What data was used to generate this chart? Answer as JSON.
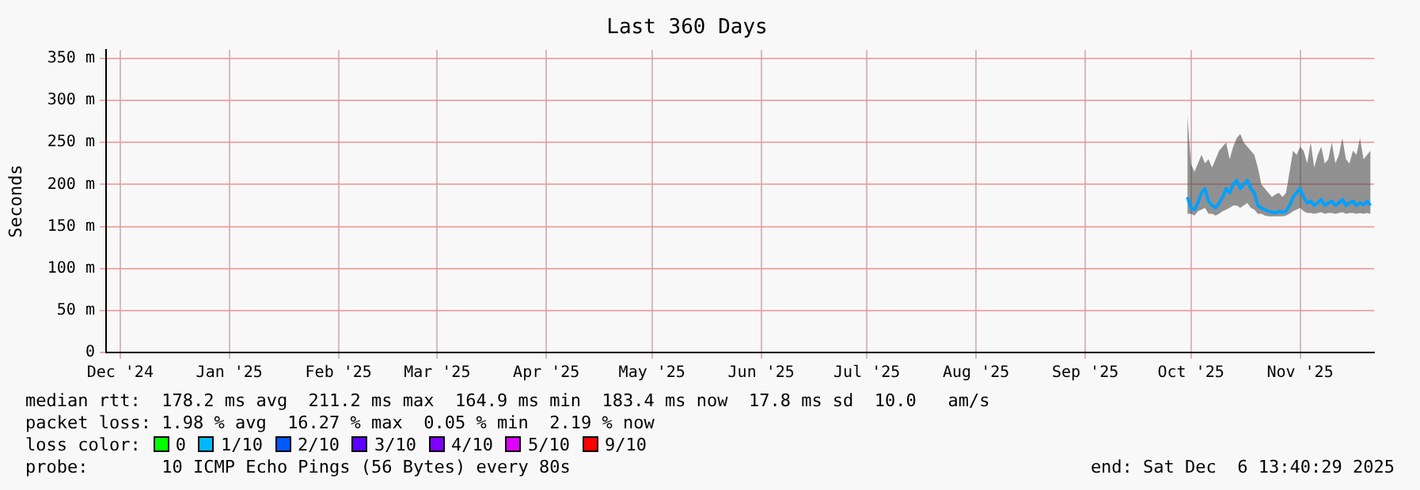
{
  "chart_data": {
    "type": "line",
    "title": "Last 360 Days",
    "ylabel": "Seconds",
    "x": [
      "2025-10-14",
      "2025-10-15",
      "2025-10-16",
      "2025-10-17",
      "2025-10-18",
      "2025-10-19",
      "2025-10-20",
      "2025-10-21",
      "2025-10-22",
      "2025-10-23",
      "2025-10-24",
      "2025-10-25",
      "2025-10-26",
      "2025-10-27",
      "2025-10-28",
      "2025-10-29",
      "2025-10-30",
      "2025-10-31",
      "2025-11-01",
      "2025-11-02",
      "2025-11-03",
      "2025-11-04",
      "2025-11-05",
      "2025-11-06",
      "2025-11-07",
      "2025-11-08",
      "2025-11-09",
      "2025-11-10",
      "2025-11-11",
      "2025-11-12",
      "2025-11-13",
      "2025-11-14",
      "2025-11-15",
      "2025-11-16",
      "2025-11-17",
      "2025-11-18",
      "2025-11-19",
      "2025-11-20",
      "2025-11-21",
      "2025-11-22",
      "2025-11-23",
      "2025-11-24",
      "2025-11-25",
      "2025-11-26",
      "2025-11-27",
      "2025-11-28",
      "2025-11-29",
      "2025-11-30",
      "2025-12-01",
      "2025-12-02",
      "2025-12-03",
      "2025-12-04",
      "2025-12-05"
    ],
    "series": [
      {
        "color": "#00a0ff",
        "values": [
          185,
          172,
          170,
          178,
          190,
          195,
          180,
          175,
          172,
          178,
          185,
          195,
          190,
          200,
          205,
          195,
          200,
          205,
          195,
          190,
          175,
          172,
          170,
          168,
          167,
          166,
          168,
          167,
          168,
          175,
          185,
          190,
          195,
          185,
          178,
          180,
          175,
          178,
          182,
          175,
          178,
          180,
          175,
          178,
          182,
          175,
          178,
          180,
          175,
          178,
          176,
          180,
          175
        ],
        "lower": [
          165,
          165,
          163,
          168,
          170,
          172,
          165,
          165,
          163,
          165,
          168,
          170,
          172,
          175,
          175,
          172,
          175,
          178,
          172,
          170,
          165,
          165,
          163,
          162,
          162,
          162,
          162,
          162,
          163,
          165,
          168,
          170,
          172,
          168,
          166,
          166,
          165,
          166,
          167,
          165,
          166,
          166,
          165,
          166,
          167,
          165,
          166,
          166,
          165,
          166,
          165,
          166,
          165
        ],
        "upper": [
          282,
          225,
          215,
          225,
          235,
          225,
          230,
          220,
          230,
          240,
          245,
          250,
          230,
          245,
          255,
          260,
          250,
          245,
          240,
          235,
          220,
          200,
          195,
          190,
          185,
          188,
          190,
          185,
          190,
          215,
          240,
          235,
          245,
          240,
          225,
          250,
          220,
          235,
          245,
          225,
          230,
          250,
          225,
          235,
          255,
          230,
          225,
          240,
          235,
          255,
          230,
          235,
          240
        ]
      }
    ],
    "xlim": [
      "2024-12-11",
      "2025-12-06"
    ],
    "xticks": [
      {
        "value": "2024-12-15",
        "label": "Dec '24"
      },
      {
        "value": "2025-01-15",
        "label": "Jan '25"
      },
      {
        "value": "2025-02-15",
        "label": "Feb '25"
      },
      {
        "value": "2025-03-15",
        "label": "Mar '25"
      },
      {
        "value": "2025-04-15",
        "label": "Apr '25"
      },
      {
        "value": "2025-05-15",
        "label": "May '25"
      },
      {
        "value": "2025-06-15",
        "label": "Jun '25"
      },
      {
        "value": "2025-07-15",
        "label": "Jul '25"
      },
      {
        "value": "2025-08-15",
        "label": "Aug '25"
      },
      {
        "value": "2025-09-15",
        "label": "Sep '25"
      },
      {
        "value": "2025-10-15",
        "label": "Oct '25"
      },
      {
        "value": "2025-11-15",
        "label": "Nov '25"
      }
    ],
    "ylim": [
      0,
      360
    ],
    "yticks": [
      {
        "value": 0,
        "label": "0"
      },
      {
        "value": 50,
        "label": "50 m"
      },
      {
        "value": 100,
        "label": "100 m"
      },
      {
        "value": 150,
        "label": "150 m"
      },
      {
        "value": 200,
        "label": "200 m"
      },
      {
        "value": 250,
        "label": "250 m"
      },
      {
        "value": 300,
        "label": "300 m"
      },
      {
        "value": 350,
        "label": "350 m"
      }
    ],
    "grid": true,
    "legend": false,
    "marker": "none",
    "line_style": "solid",
    "annotations": [
      "median rtt:  178.2 ms avg  211.2 ms max  164.9 ms min  183.4 ms now  17.8 ms sd  10.0   am/s",
      "packet loss: 1.98 % avg  16.27 % max  0.05 % min  2.19 % now",
      "loss color:",
      "0",
      "1/10",
      "2/10",
      "3/10",
      "4/10",
      "5/10",
      "9/10",
      "probe:       10 ICMP Echo Pings (56 Bytes) every 80s",
      "end: Sat Dec  6 13:40:29 2025"
    ]
  }
}
